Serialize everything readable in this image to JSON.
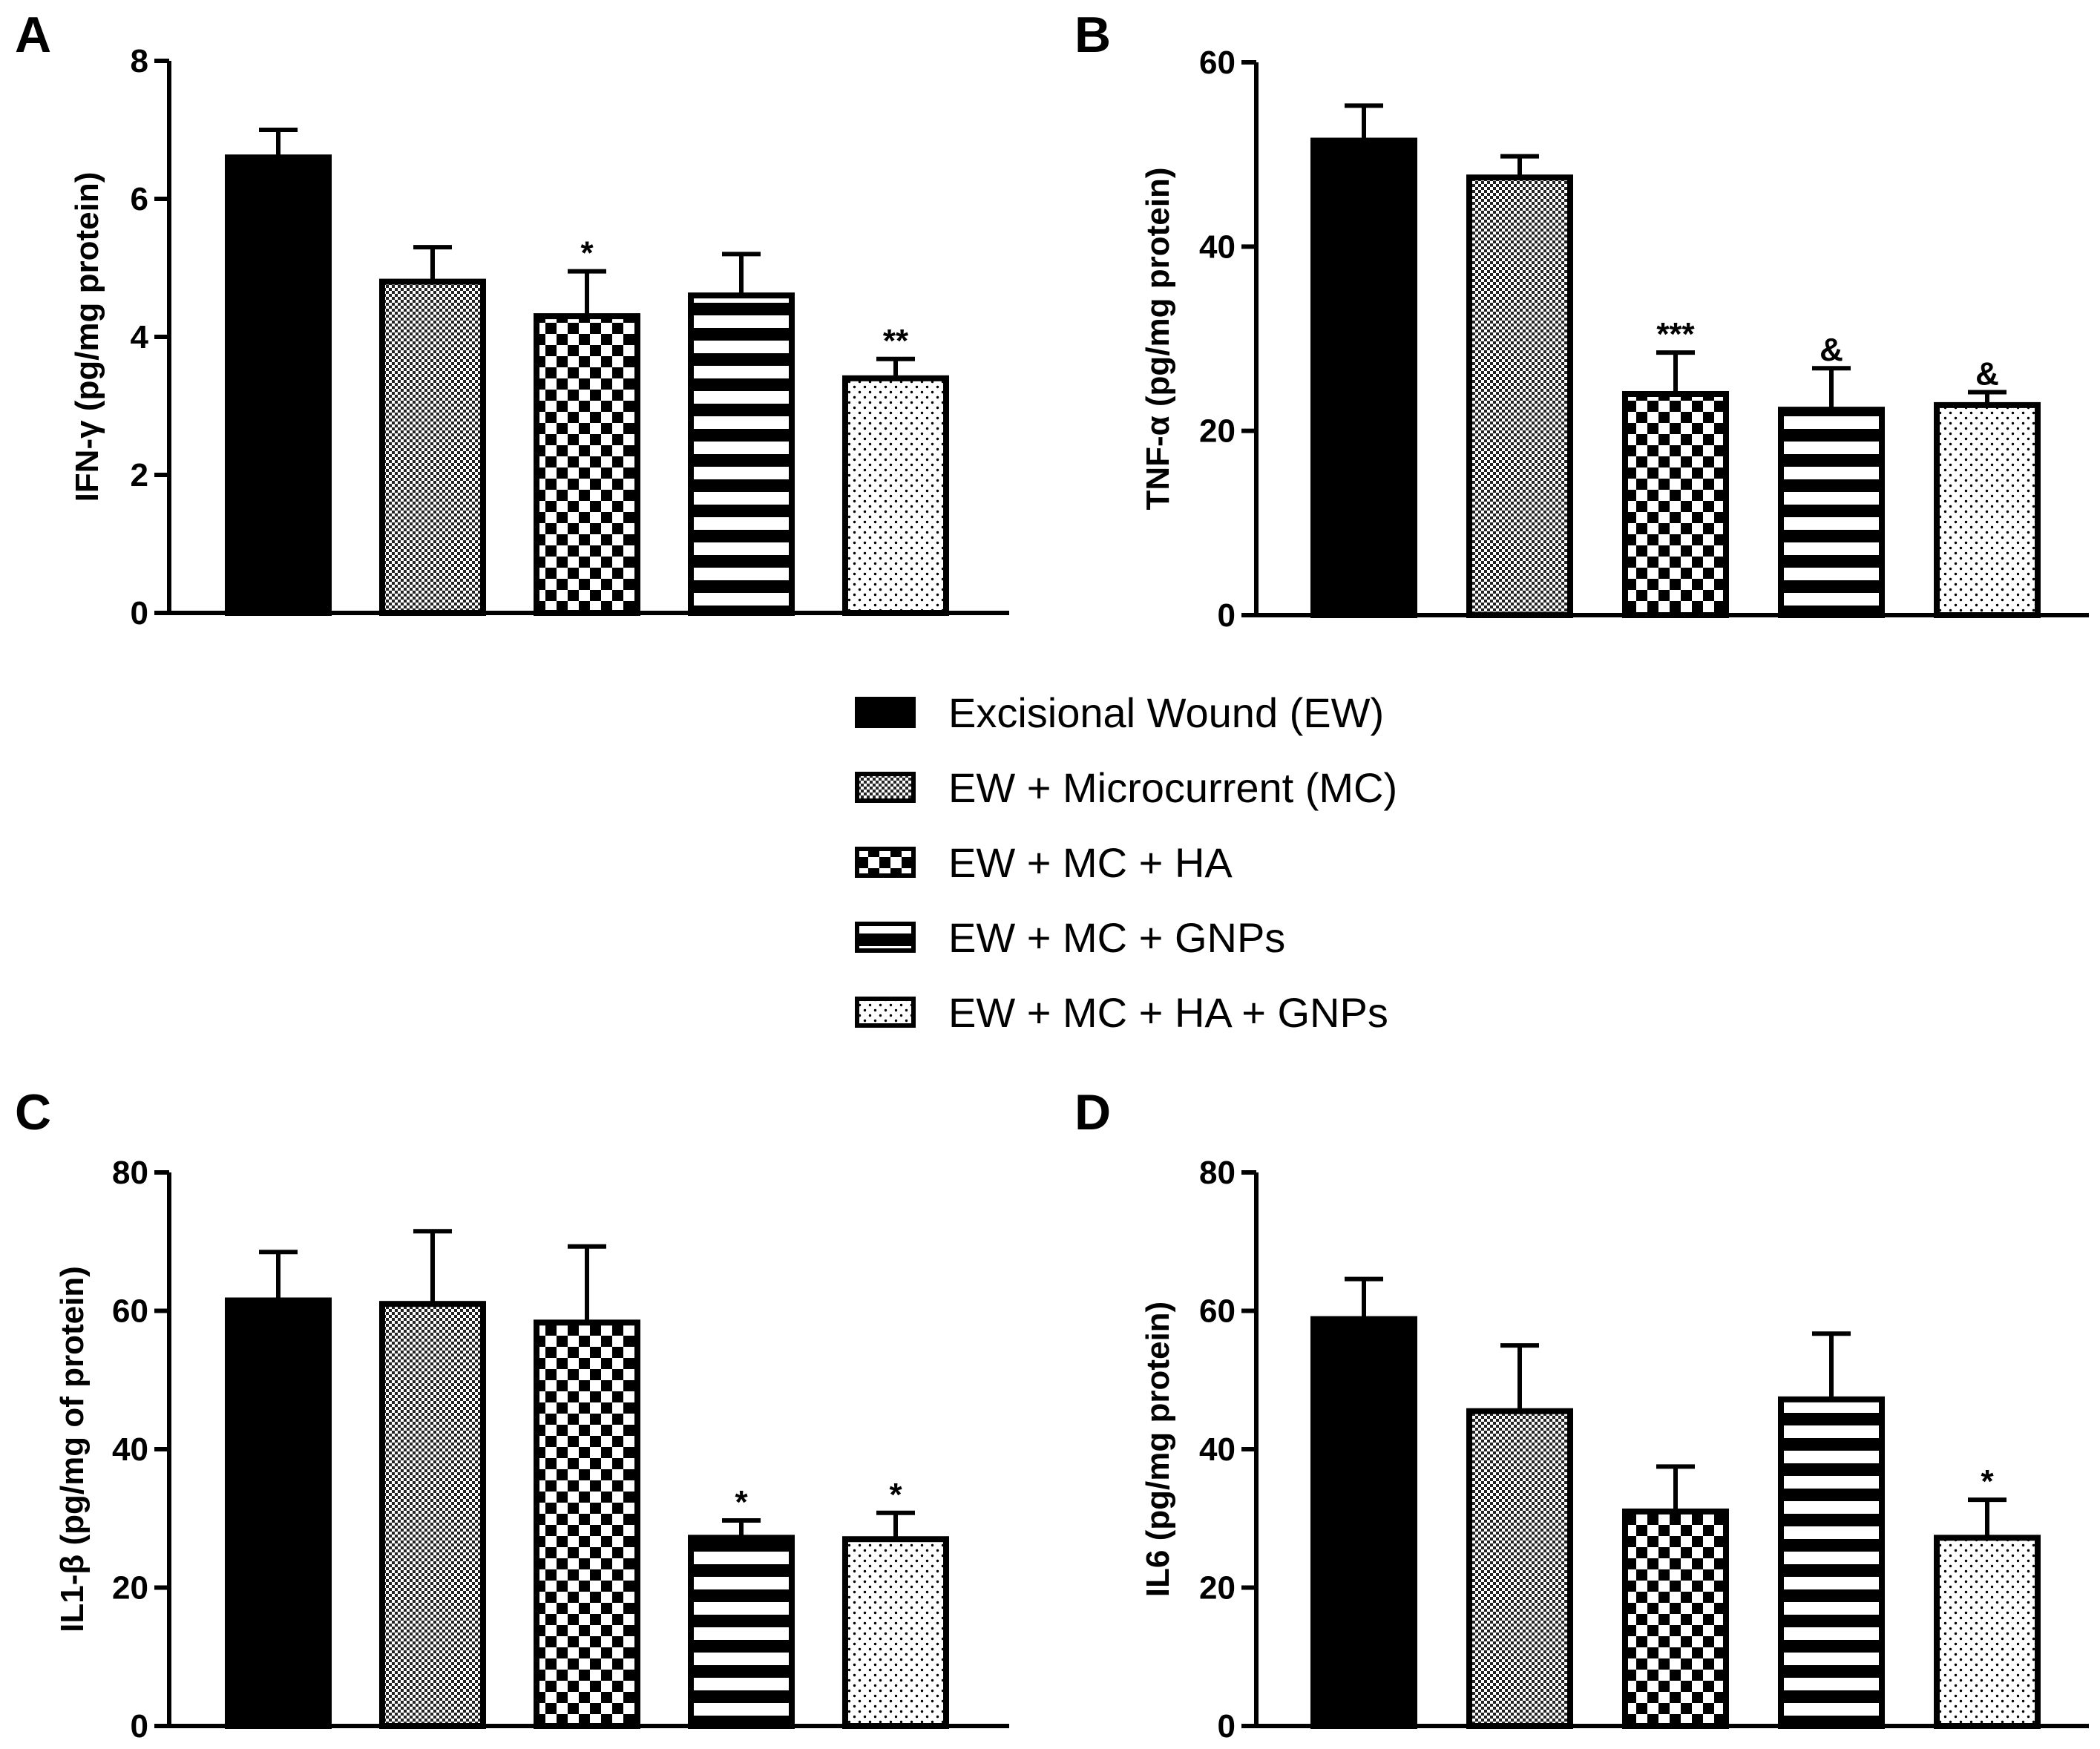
{
  "chart_data": [
    {
      "type": "bar",
      "panel": "A",
      "ylabel": "IFN-γ (pg/mg protein)",
      "ylim": [
        0,
        8
      ],
      "yticks": [
        0,
        2,
        4,
        6,
        8
      ],
      "categories": [
        "Excisional Wound (EW)",
        "EW + Microcurrent (MC)",
        "EW + MC + HA",
        "EW + MC + GNPs",
        "EW + MC + HA + GNPs"
      ],
      "values": [
        6.6,
        4.8,
        4.3,
        4.6,
        3.4
      ],
      "errors": [
        0.4,
        0.5,
        0.65,
        0.6,
        0.28
      ],
      "annotations": [
        "",
        "",
        "*",
        "",
        "**"
      ]
    },
    {
      "type": "bar",
      "panel": "B",
      "ylabel": "TNF-α (pg/mg protein)",
      "ylim": [
        0,
        60
      ],
      "yticks": [
        0,
        20,
        40,
        60
      ],
      "categories": [
        "Excisional Wound (EW)",
        "EW + Microcurrent (MC)",
        "EW + MC + HA",
        "EW + MC + GNPs",
        "EW + MC + HA + GNPs"
      ],
      "values": [
        51.5,
        47.5,
        24,
        22.3,
        22.8
      ],
      "errors": [
        3.8,
        2.3,
        4.5,
        4.5,
        1.4
      ],
      "annotations": [
        "",
        "",
        "***",
        "&",
        "&"
      ]
    },
    {
      "type": "bar",
      "panel": "C",
      "ylabel": "IL1-β (pg/mg of protein)",
      "ylim": [
        0,
        80
      ],
      "yticks": [
        0,
        20,
        40,
        60,
        80
      ],
      "categories": [
        "Excisional Wound (EW)",
        "EW + Microcurrent (MC)",
        "EW + MC + HA",
        "EW + MC + GNPs",
        "EW + MC + HA + GNPs"
      ],
      "values": [
        61.5,
        61,
        58.3,
        27.2,
        27
      ],
      "errors": [
        7,
        10.5,
        11,
        2.5,
        3.8
      ],
      "annotations": [
        "",
        "",
        "",
        "*",
        "*"
      ]
    },
    {
      "type": "bar",
      "panel": "D",
      "ylabel": "IL6 (pg/mg protein)",
      "ylim": [
        0,
        80
      ],
      "yticks": [
        0,
        20,
        40,
        60,
        80
      ],
      "categories": [
        "Excisional Wound (EW)",
        "EW + Microcurrent (MC)",
        "EW + MC + HA",
        "EW + MC + GNPs",
        "EW + MC + HA + GNPs"
      ],
      "values": [
        58.8,
        45.5,
        31,
        47.2,
        27.2
      ],
      "errors": [
        5.8,
        9.5,
        6.5,
        9.5,
        5.5
      ],
      "annotations": [
        "",
        "",
        "",
        "",
        "*"
      ]
    }
  ],
  "legend": [
    {
      "label": "Excisional Wound (EW)",
      "pattern": "solid"
    },
    {
      "label": "EW + Microcurrent (MC)",
      "pattern": "fine-check"
    },
    {
      "label": "EW + MC + HA",
      "pattern": "checker"
    },
    {
      "label": "EW + MC + GNPs",
      "pattern": "h-stripes"
    },
    {
      "label": "EW + MC + HA + GNPs",
      "pattern": "dots"
    }
  ],
  "colors": {
    "ink": "#000000",
    "background": "#ffffff"
  }
}
